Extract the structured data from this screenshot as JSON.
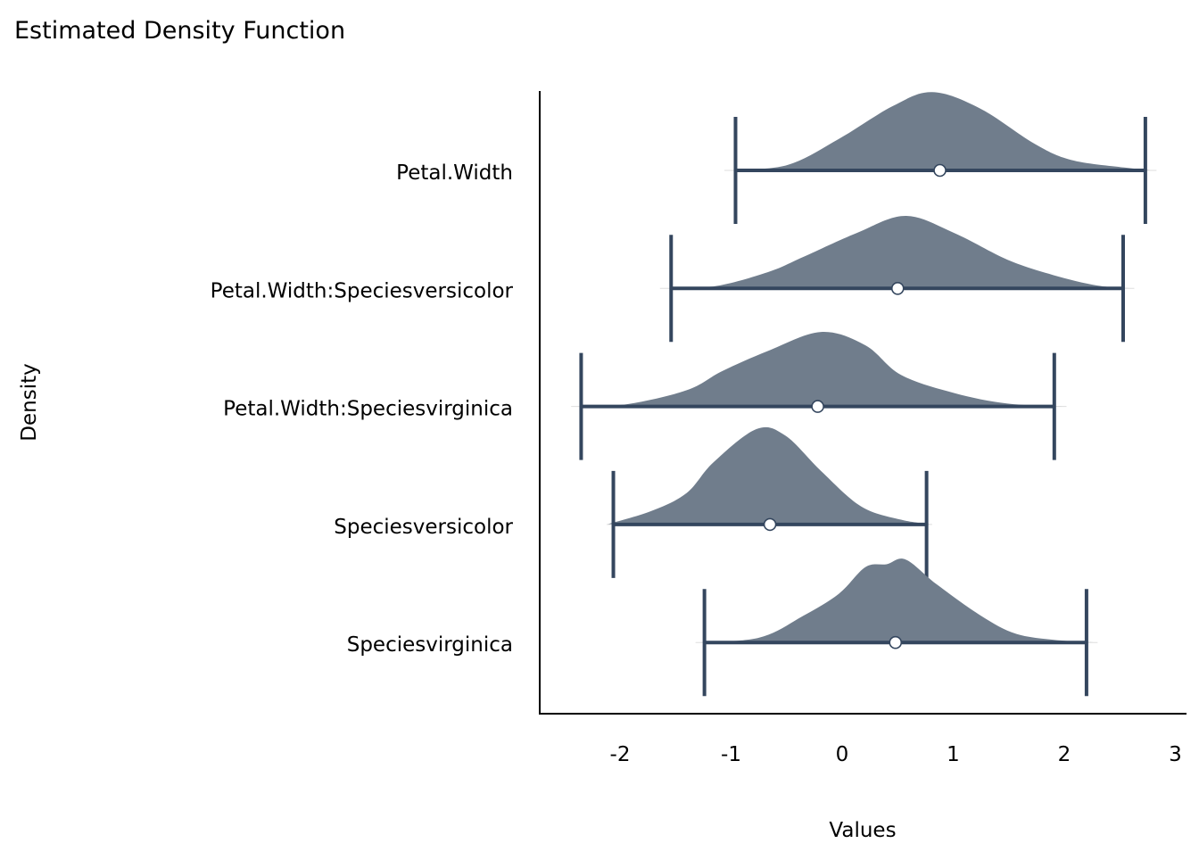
{
  "chart_data": {
    "type": "area",
    "title": "Estimated Density Function",
    "xlabel": "Values",
    "ylabel": "Density",
    "xlim": [
      -2.75,
      3.1
    ],
    "xticks": [
      -2,
      -1,
      0,
      1,
      2,
      3
    ],
    "xtick_labels": [
      "-2",
      "-1",
      "0",
      "1",
      "2",
      "3"
    ],
    "grid": false,
    "colors": {
      "fill": "#707d8c",
      "line": "#34465e",
      "point_fill": "#ffffff"
    },
    "series": [
      {
        "name": "Petal.Width",
        "point": 0.88,
        "interval": [
          -0.96,
          2.73
        ],
        "density": [
          [
            -1.06,
            0
          ],
          [
            -0.51,
            0.05
          ],
          [
            -0.03,
            0.33
          ],
          [
            0.45,
            0.67
          ],
          [
            0.81,
            0.82
          ],
          [
            1.24,
            0.65
          ],
          [
            1.73,
            0.28
          ],
          [
            2.06,
            0.11
          ],
          [
            2.54,
            0.03
          ],
          [
            2.83,
            0
          ]
        ]
      },
      {
        "name": "Petal.Width:Speciesversicolor",
        "point": 0.5,
        "interval": [
          -1.54,
          2.53
        ],
        "density": [
          [
            -1.64,
            0
          ],
          [
            -1.16,
            0.02
          ],
          [
            -0.67,
            0.17
          ],
          [
            -0.35,
            0.33
          ],
          [
            0.13,
            0.58
          ],
          [
            0.57,
            0.76
          ],
          [
            1.01,
            0.58
          ],
          [
            1.49,
            0.3
          ],
          [
            1.9,
            0.14
          ],
          [
            2.3,
            0.03
          ],
          [
            2.63,
            0
          ]
        ]
      },
      {
        "name": "Petal.Width:Speciesvirginica",
        "point": -0.22,
        "interval": [
          -2.35,
          1.91
        ],
        "density": [
          [
            -2.44,
            0
          ],
          [
            -1.96,
            0.02
          ],
          [
            -1.4,
            0.17
          ],
          [
            -1.08,
            0.37
          ],
          [
            -0.67,
            0.58
          ],
          [
            -0.19,
            0.78
          ],
          [
            0.21,
            0.64
          ],
          [
            0.53,
            0.33
          ],
          [
            1.01,
            0.14
          ],
          [
            1.49,
            0.03
          ],
          [
            2.02,
            0
          ]
        ]
      },
      {
        "name": "Speciesversicolor",
        "point": -0.65,
        "interval": [
          -2.06,
          0.76
        ],
        "density": [
          [
            -2.12,
            0
          ],
          [
            -1.72,
            0.14
          ],
          [
            -1.4,
            0.33
          ],
          [
            -1.16,
            0.65
          ],
          [
            -0.77,
            1.0
          ],
          [
            -0.51,
            0.93
          ],
          [
            -0.19,
            0.56
          ],
          [
            0.17,
            0.19
          ],
          [
            0.53,
            0.05
          ],
          [
            0.81,
            0
          ]
        ]
      },
      {
        "name": "Speciesvirginica",
        "point": 0.48,
        "interval": [
          -1.24,
          2.2
        ],
        "density": [
          [
            -1.32,
            0
          ],
          [
            -0.75,
            0.05
          ],
          [
            -0.35,
            0.28
          ],
          [
            -0.03,
            0.51
          ],
          [
            0.21,
            0.79
          ],
          [
            0.4,
            0.82
          ],
          [
            0.57,
            0.87
          ],
          [
            0.85,
            0.61
          ],
          [
            1.25,
            0.28
          ],
          [
            1.57,
            0.09
          ],
          [
            1.98,
            0.02
          ],
          [
            2.3,
            0
          ]
        ]
      }
    ]
  }
}
